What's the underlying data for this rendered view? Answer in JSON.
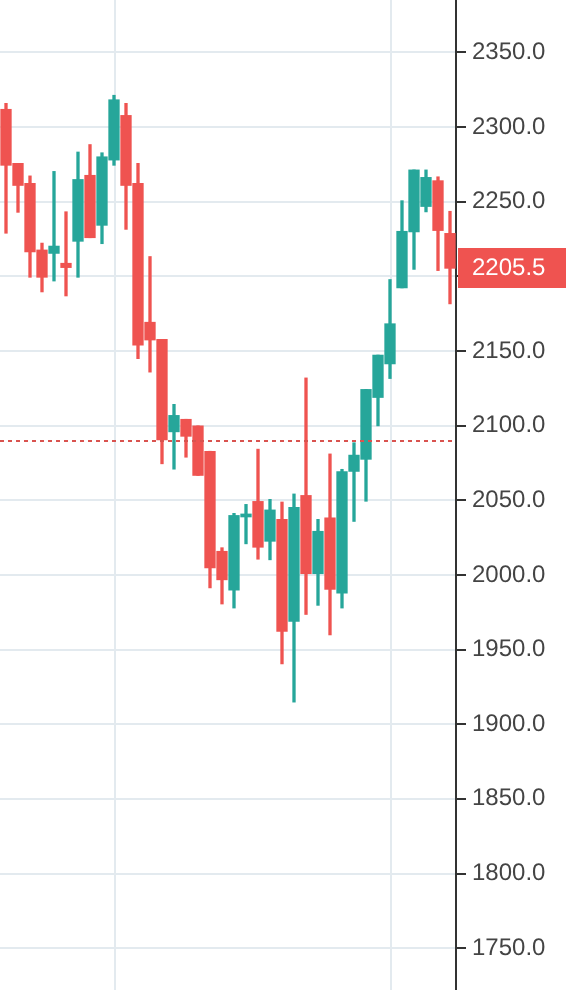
{
  "chart_data": {
    "type": "candlestick",
    "categories": [
      null,
      null,
      null,
      null,
      null,
      null,
      null,
      null,
      null,
      null,
      null,
      null,
      null,
      null,
      null,
      null,
      null,
      null,
      null,
      null,
      null,
      null,
      null,
      null,
      null,
      null,
      null,
      null,
      null,
      null,
      null,
      null,
      null,
      null,
      null,
      null,
      null,
      null
    ],
    "ohlc": [
      [
        2311.6,
        2315.6,
        2229,
        2274.5
      ],
      [
        2275.4,
        2275.4,
        2243,
        2261
      ],
      [
        2262,
        2267,
        2199.5,
        2216.5
      ],
      [
        2217.4,
        2222,
        2189.7,
        2199.5
      ],
      [
        2215.5,
        2270,
        2197,
        2220
      ],
      [
        2208.5,
        2243,
        2187,
        2206
      ],
      [
        2223.6,
        2283,
        2199.5,
        2264.6
      ],
      [
        2267.4,
        2288,
        2226,
        2226
      ],
      [
        2234.3,
        2282.5,
        2222,
        2279.8
      ],
      [
        2278,
        2321,
        2274.5,
        2318
      ],
      [
        2307.5,
        2315.6,
        2231.6,
        2261
      ],
      [
        2262,
        2275.4,
        2145,
        2154
      ],
      [
        2169,
        2213,
        2136,
        2157.5
      ],
      [
        2157.5,
        2157.5,
        2074.6,
        2090.6
      ],
      [
        2096,
        2114,
        2071,
        2106.6
      ],
      [
        2104,
        2104,
        2079,
        2093
      ],
      [
        2099.6,
        2099.6,
        2066.8,
        2066.8
      ],
      [
        2082.6,
        2082.6,
        1991.5,
        2004.9
      ],
      [
        2015.6,
        2018,
        1980.7,
        1996.9
      ],
      [
        1990,
        2041,
        1978,
        2039.6
      ],
      [
        2039,
        2047,
        2021,
        2040.6
      ],
      [
        2049,
        2084,
        2010.7,
        2018.7
      ],
      [
        2022.7,
        2050.4,
        2010.3,
        2043.3
      ],
      [
        2037,
        2048.6,
        1940.6,
        1962.4
      ],
      [
        1969,
        2054,
        1915,
        2045
      ],
      [
        2053,
        2131.7,
        1973.7,
        2001
      ],
      [
        2001,
        2037,
        1979.8,
        2029
      ],
      [
        2038,
        2080.8,
        1960,
        1990.5
      ],
      [
        1988,
        2070.5,
        1978,
        2069
      ],
      [
        2069.5,
        2088.3,
        2036,
        2080
      ],
      [
        2077.6,
        2124,
        2049.5,
        2124
      ],
      [
        2119,
        2147,
        2100,
        2147
      ],
      [
        2141.5,
        2197.6,
        2131.7,
        2168
      ],
      [
        2192.4,
        2250.4,
        2192.4,
        2229.9
      ],
      [
        2229.9,
        2271,
        2204.8,
        2271
      ],
      [
        2246.9,
        2271,
        2243.3,
        2266
      ],
      [
        2263.8,
        2266.4,
        2204,
        2230.8
      ],
      [
        2228.5,
        2243.3,
        2181.7,
        2205.5
      ]
    ],
    "colors": [
      "#ef5350",
      "#ef5350",
      "#ef5350",
      "#ef5350",
      "#26a69a",
      "#ef5350",
      "#26a69a",
      "#ef5350",
      "#26a69a",
      "#26a69a",
      "#ef5350",
      "#ef5350",
      "#ef5350",
      "#ef5350",
      "#26a69a",
      "#ef5350",
      "#ef5350",
      "#ef5350",
      "#ef5350",
      "#26a69a",
      "#26a69a",
      "#ef5350",
      "#26a69a",
      "#ef5350",
      "#26a69a",
      "#ef5350",
      "#26a69a",
      "#ef5350",
      "#26a69a",
      "#26a69a",
      "#26a69a",
      "#26a69a",
      "#26a69a",
      "#26a69a",
      "#26a69a",
      "#26a69a",
      "#ef5350",
      "#ef5350"
    ],
    "ylim": [
      1722,
      2385
    ],
    "yticks": [
      {
        "value": 1750,
        "label": "1750.0"
      },
      {
        "value": 1800,
        "label": "1800.0"
      },
      {
        "value": 1850,
        "label": "1850.0"
      },
      {
        "value": 1900,
        "label": "1900.0"
      },
      {
        "value": 1950,
        "label": "1950.0"
      },
      {
        "value": 2000,
        "label": "2000.0"
      },
      {
        "value": 2050,
        "label": "2050.0"
      },
      {
        "value": 2100,
        "label": "2100.0"
      },
      {
        "value": 2150,
        "label": "2150.0"
      },
      {
        "value": 2200,
        "label": null
      },
      {
        "value": 2250,
        "label": "2250.0"
      },
      {
        "value": 2300,
        "label": "2300.0"
      },
      {
        "value": 2350,
        "label": "2350.0"
      }
    ],
    "ref_lines": [
      {
        "axis": "y",
        "value": 2090,
        "color": "#d9534f",
        "line_style": "dotted"
      }
    ],
    "annotations": [
      "2205.5"
    ],
    "grid": true,
    "tick_labels": "y"
  }
}
